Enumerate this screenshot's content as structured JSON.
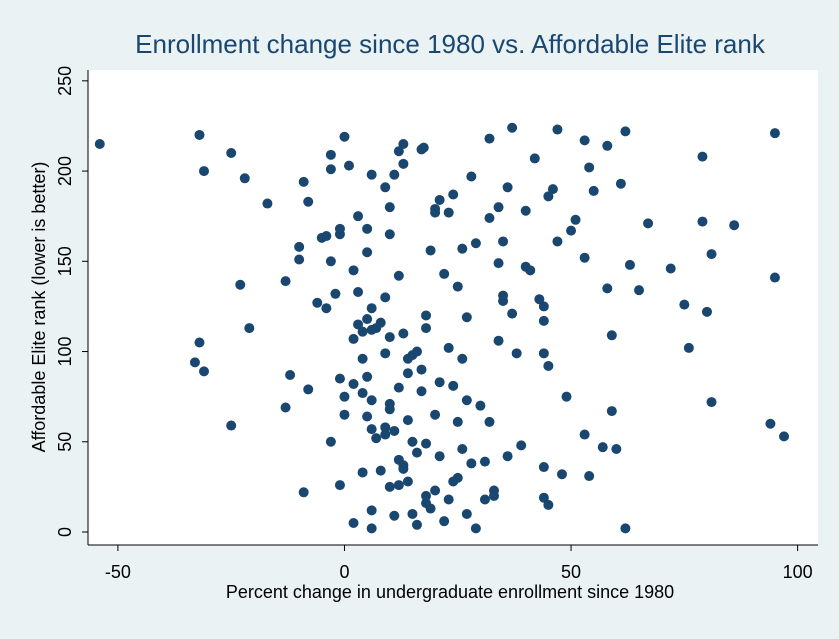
{
  "chart_data": {
    "type": "scatter",
    "title": "Enrollment change since 1980 vs. Affordable Elite rank",
    "x_label": "Percent change in undergraduate enrollment since 1980",
    "y_label": "Affordable Elite rank (lower is better)",
    "color": "#1a476f",
    "grid": false,
    "xlim": [
      -56.6,
      104.5
    ],
    "xticks": [
      -50,
      0,
      50,
      100
    ],
    "ylim": [
      -7.2,
      256
    ],
    "yticks": [
      0,
      50,
      100,
      150,
      200,
      250
    ],
    "x": [
      -54,
      -32,
      -31,
      -25,
      -22,
      -17,
      -23,
      -21,
      -33,
      -32,
      -31,
      -25,
      -13,
      -12,
      -13,
      -10,
      -10,
      -9,
      -8,
      -8,
      -9,
      -6,
      -5,
      -4,
      -4,
      -3,
      -3,
      -3,
      -1,
      -1,
      -2,
      -1,
      -1,
      0,
      1,
      0,
      0,
      -3,
      2,
      2,
      2,
      2,
      3,
      3,
      3,
      4,
      4,
      4,
      4,
      5,
      5,
      5,
      5,
      5,
      6,
      6,
      6,
      6,
      6,
      6,
      6,
      7,
      7,
      8,
      8,
      9,
      9,
      9,
      9,
      9,
      10,
      10,
      10,
      10,
      10,
      10,
      11,
      11,
      11,
      12,
      12,
      12,
      12,
      12,
      13,
      13,
      13,
      13,
      13,
      14,
      14,
      14,
      14,
      15,
      15,
      16,
      15,
      16,
      17,
      17.5,
      16,
      17,
      17,
      18,
      18,
      18,
      18,
      18,
      19,
      19,
      20,
      20,
      20,
      20,
      21,
      21,
      21,
      22,
      22,
      23,
      23,
      23,
      24,
      24,
      24,
      25,
      25,
      25,
      26,
      26,
      26,
      27,
      27,
      27,
      28,
      28,
      29,
      29,
      30,
      31,
      31,
      32,
      32,
      32,
      33,
      33,
      34,
      34,
      34,
      35,
      35,
      35,
      36,
      36,
      37,
      37,
      38,
      39,
      40,
      40,
      41,
      42,
      43,
      44,
      44,
      44,
      44,
      44,
      45,
      45,
      45,
      46,
      47,
      47,
      48,
      49,
      50,
      51,
      53,
      53,
      53,
      54,
      54,
      55,
      57,
      58,
      58,
      59,
      59,
      60,
      61,
      62,
      62,
      63,
      65,
      67,
      72,
      75,
      76,
      79,
      79,
      80,
      81,
      81,
      86,
      94,
      95,
      95,
      97
    ],
    "y": [
      215,
      220,
      200,
      210,
      196,
      182,
      137,
      113,
      94,
      105,
      89,
      59,
      139,
      87,
      69,
      151,
      158,
      194,
      183,
      79,
      22,
      127,
      163,
      164,
      124,
      209,
      201,
      150,
      165,
      168,
      132,
      85,
      26,
      219,
      203,
      75,
      65,
      50,
      145,
      107,
      82,
      5,
      175,
      133,
      115,
      111,
      96,
      77,
      33,
      168,
      155,
      118,
      86,
      64,
      198,
      124,
      112,
      73,
      57,
      12,
      2,
      113,
      52,
      116,
      34,
      191,
      130,
      99,
      54,
      58,
      180,
      165,
      108,
      68,
      71,
      25,
      198,
      56,
      9,
      211,
      142,
      80,
      40,
      26,
      215,
      204,
      110,
      37,
      35,
      28,
      88,
      96,
      62,
      50,
      98,
      100,
      10,
      44,
      212,
      213,
      4,
      90,
      78,
      120,
      113,
      49,
      20,
      16,
      156,
      13,
      179,
      177,
      65,
      23,
      184,
      83,
      42,
      143,
      6,
      177,
      102,
      18,
      187,
      81,
      28,
      136,
      61,
      30,
      157,
      96,
      46,
      119,
      73,
      10,
      197,
      38,
      160,
      2,
      70,
      18,
      39,
      218,
      174,
      61,
      20,
      23,
      180,
      106,
      149,
      161,
      131,
      128,
      191,
      42,
      224,
      121,
      99,
      48,
      178,
      147,
      145,
      207,
      129,
      125,
      117,
      36,
      19,
      99,
      15,
      92,
      186,
      190,
      223,
      161,
      32,
      75,
      167,
      173,
      217,
      152,
      54,
      202,
      31,
      189,
      47,
      214,
      135,
      109,
      67,
      46,
      193,
      222,
      2,
      148,
      134,
      171,
      146,
      126,
      102,
      172,
      208,
      122,
      154,
      72,
      170,
      60,
      221,
      141,
      53
    ]
  }
}
